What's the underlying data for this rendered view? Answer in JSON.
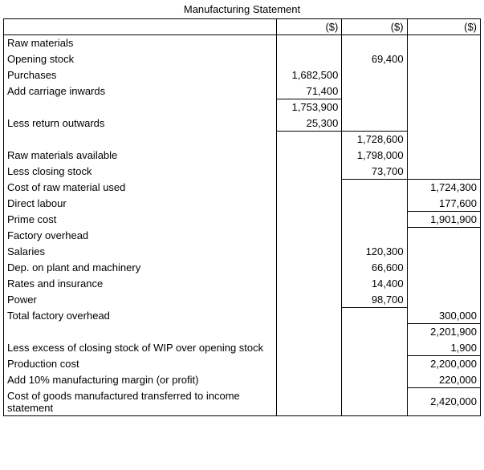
{
  "title": "Manufacturing Statement",
  "header": {
    "c1": "($)",
    "c2": "($)",
    "c3": "($)"
  },
  "rows": {
    "r0": {
      "label": "Raw materials"
    },
    "r1": {
      "label": "Opening stock",
      "c2": "69,400"
    },
    "r2": {
      "label": "Purchases",
      "c1": "1,682,500"
    },
    "r3": {
      "label": "Add carriage inwards",
      "c1": "71,400"
    },
    "r4": {
      "label": "",
      "c1": "1,753,900"
    },
    "r5": {
      "label": "Less return outwards",
      "c1": "25,300"
    },
    "r6": {
      "label": "",
      "c2": "1,728,600"
    },
    "r7": {
      "label": "Raw materials available",
      "c2": "1,798,000"
    },
    "r8": {
      "label": "Less closing stock",
      "c2": "73,700"
    },
    "r9": {
      "label": "Cost of raw material used",
      "c3": "1,724,300"
    },
    "r10": {
      "label": "Direct labour",
      "c3": "177,600"
    },
    "r11": {
      "label": "Prime cost",
      "c3": "1,901,900"
    },
    "r12": {
      "label": "Factory overhead"
    },
    "r13": {
      "label": "Salaries",
      "c2": "120,300"
    },
    "r14": {
      "label": "Dep. on plant and machinery",
      "c2": "66,600"
    },
    "r15": {
      "label": "Rates and insurance",
      "c2": "14,400"
    },
    "r16": {
      "label": "Power",
      "c2": "98,700"
    },
    "r17": {
      "label": "Total factory overhead",
      "c3": "300,000"
    },
    "r18": {
      "label": "",
      "c3": "2,201,900"
    },
    "r19": {
      "label": "Less excess of closing stock of WIP over opening stock",
      "c3": "1,900"
    },
    "r20": {
      "label": "Production cost",
      "c3": "2,200,000"
    },
    "r21": {
      "label": "Add 10% manufacturing margin (or profit)",
      "c3": "220,000"
    },
    "r22": {
      "label": "Cost of goods manufactured transferred to income statement",
      "c3": "2,420,000"
    }
  }
}
